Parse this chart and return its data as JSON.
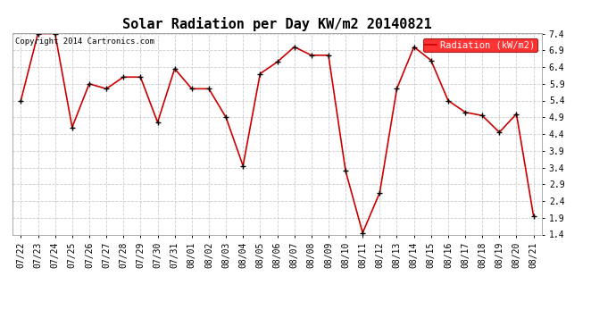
{
  "title": "Solar Radiation per Day KW/m2 20140821",
  "copyright": "Copyright 2014 Cartronics.com",
  "legend_label": "Radiation (kW/m2)",
  "background_color": "#ffffff",
  "plot_bg_color": "#ffffff",
  "grid_color": "#cccccc",
  "line_color": "#cc0000",
  "marker_color": "#000000",
  "labels": [
    "07/22",
    "07/23",
    "07/24",
    "07/25",
    "07/26",
    "07/27",
    "07/28",
    "07/29",
    "07/30",
    "07/31",
    "08/01",
    "08/02",
    "08/03",
    "08/04",
    "08/05",
    "08/06",
    "08/07",
    "08/08",
    "08/09",
    "08/10",
    "08/11",
    "08/12",
    "08/13",
    "08/14",
    "08/15",
    "08/16",
    "08/17",
    "08/18",
    "08/19",
    "08/20",
    "08/21"
  ],
  "values": [
    5.4,
    7.4,
    7.4,
    4.6,
    5.9,
    5.75,
    6.1,
    6.1,
    4.75,
    6.35,
    5.75,
    5.75,
    4.9,
    3.45,
    6.2,
    6.55,
    7.0,
    6.75,
    6.75,
    3.3,
    1.45,
    2.65,
    5.75,
    7.0,
    6.6,
    5.4,
    5.05,
    4.95,
    4.45,
    5.0,
    1.95
  ],
  "ylim": [
    1.4,
    7.4
  ],
  "yticks": [
    1.4,
    1.9,
    2.4,
    2.9,
    3.4,
    3.9,
    4.4,
    4.9,
    5.4,
    5.9,
    6.4,
    6.9,
    7.4
  ],
  "title_fontsize": 11,
  "tick_fontsize": 7,
  "copyright_fontsize": 6.5,
  "legend_fontsize": 7.5
}
